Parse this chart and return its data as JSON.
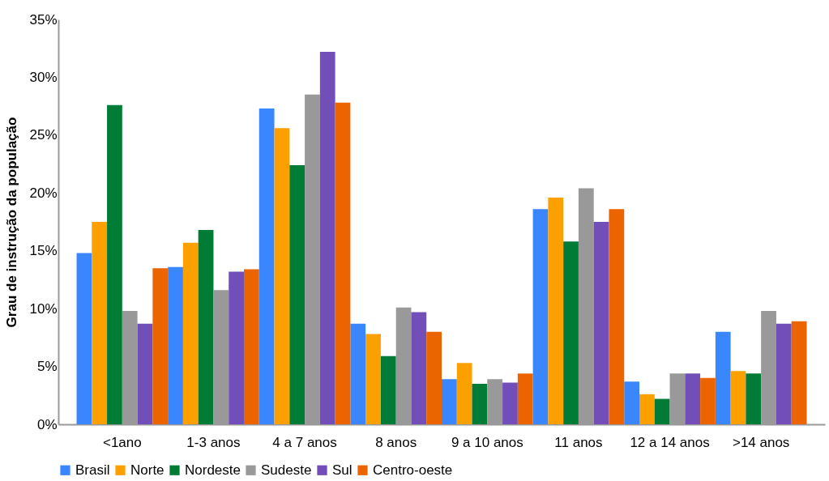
{
  "chart_data": {
    "type": "bar",
    "ylabel": "Grau de instrução da população",
    "categories": [
      "<1ano",
      "1-3 anos",
      "4 a 7 anos",
      "8 anos",
      "9 a 10 anos",
      "11 anos",
      "12 a 14 anos",
      ">14 anos"
    ],
    "series": [
      {
        "name": "Brasil",
        "color": "#3a86ff",
        "values": [
          14.8,
          13.6,
          27.3,
          8.7,
          3.9,
          18.6,
          3.7,
          8.0
        ]
      },
      {
        "name": "Norte",
        "color": "#fca000",
        "values": [
          17.5,
          15.7,
          25.6,
          7.8,
          5.3,
          19.6,
          2.6,
          4.6
        ]
      },
      {
        "name": "Nordeste",
        "color": "#007c36",
        "values": [
          27.6,
          16.8,
          22.4,
          5.9,
          3.5,
          15.8,
          2.2,
          4.4
        ]
      },
      {
        "name": "Sudeste",
        "color": "#999999",
        "values": [
          9.8,
          11.6,
          28.5,
          10.1,
          3.9,
          20.4,
          4.4,
          9.8
        ]
      },
      {
        "name": "Sul",
        "color": "#724fb8",
        "values": [
          8.7,
          13.2,
          32.2,
          9.7,
          3.6,
          17.5,
          4.4,
          8.7
        ]
      },
      {
        "name": "Centro-oeste",
        "color": "#ec6400",
        "values": [
          13.5,
          13.4,
          27.8,
          8.0,
          4.4,
          18.6,
          4.0,
          8.9
        ]
      }
    ],
    "ylim": [
      0,
      35
    ],
    "yticks": [
      {
        "value": 0,
        "label": "0%"
      },
      {
        "value": 5,
        "label": "5%"
      },
      {
        "value": 10,
        "label": "10%"
      },
      {
        "value": 15,
        "label": "15%"
      },
      {
        "value": 20,
        "label": "20%"
      },
      {
        "value": 25,
        "label": "25%"
      },
      {
        "value": 30,
        "label": "30%"
      },
      {
        "value": 35,
        "label": "35%"
      }
    ],
    "grid": false,
    "legend": "bottom"
  }
}
